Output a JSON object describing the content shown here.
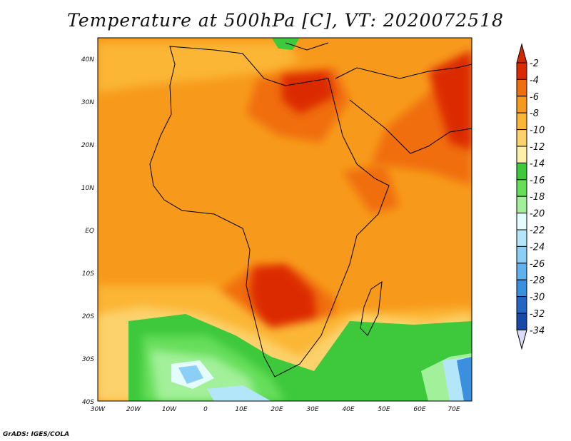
{
  "title": "Temperature at 500hPa [C], VT: 2020072518",
  "credit": "GrADS: IGES/COLA",
  "map": {
    "lon_labels": [
      "30W",
      "20W",
      "10W",
      "0",
      "10E",
      "20E",
      "30E",
      "40E",
      "50E",
      "60E",
      "70E"
    ],
    "lat_labels": [
      "40N",
      "30N",
      "20N",
      "10N",
      "EQ",
      "10S",
      "20S",
      "30S",
      "40S"
    ]
  },
  "colorbar": {
    "labels": [
      "-2",
      "-4",
      "-6",
      "-8",
      "-10",
      "-12",
      "-14",
      "-16",
      "-18",
      "-20",
      "-22",
      "-24",
      "-26",
      "-28",
      "-30",
      "-32",
      "-34"
    ],
    "colors": [
      "#dc2a00",
      "#f06e0c",
      "#f79a1c",
      "#fbb634",
      "#fcd26c",
      "#fef0a8",
      "#3ec83c",
      "#66de5a",
      "#a2f09a",
      "#e4fcfc",
      "#b4e6fa",
      "#8ccff6",
      "#5fb2ee",
      "#3b8fdf",
      "#2466c6",
      "#1649a8",
      "#0c2478"
    ],
    "top_arrow_color": "#d22800",
    "bottom_arrow_color": "#dcdcf8"
  }
}
